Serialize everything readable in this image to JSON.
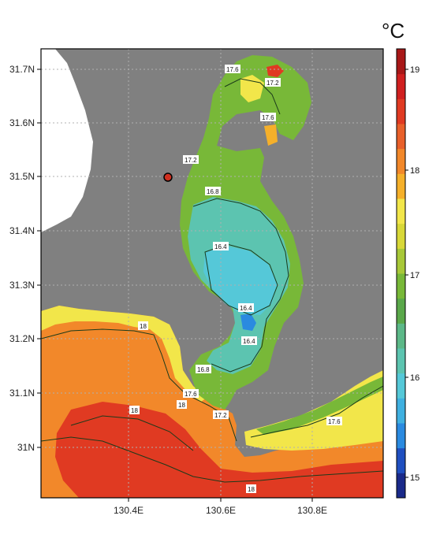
{
  "colors": {
    "land": "#808080",
    "land_white": "#ffffff",
    "gridline": "#b0b0b0",
    "frame": "#000000",
    "contour": "#1a3a1a",
    "marker_fill": "#d03020"
  },
  "map": {
    "unit_label": "°C",
    "lon_ticks": [
      "130.4E",
      "130.6E",
      "130.8E"
    ],
    "lat_ticks": [
      "31.7N",
      "31.6N",
      "31.5N",
      "31.4N",
      "31.3N",
      "31.2N",
      "31.1N",
      "31N"
    ],
    "contour_labels": [
      "17.6",
      "17.2",
      "17.6",
      "17.2",
      "16.8",
      "16.4",
      "16.4",
      "16.4",
      "18",
      "16.8",
      "17.6",
      "18",
      "17.2",
      "18",
      "17.6",
      "18"
    ],
    "colorbar": {
      "min": 14.7,
      "max": 19.4,
      "tick_labels": [
        "19",
        "18",
        "17",
        "16",
        "15"
      ],
      "colors": [
        "#1a2a8a",
        "#1f4fc0",
        "#2a8ae0",
        "#3fb0e0",
        "#55c8d8",
        "#5cc4b0",
        "#5cb888",
        "#5aa84a",
        "#78b838",
        "#a8c838",
        "#d8d838",
        "#f2e64a",
        "#f5b02a",
        "#f2882a",
        "#e8602a",
        "#e03a22",
        "#d02020",
        "#a81818"
      ]
    },
    "marker_icon": "site-marker-icon"
  }
}
